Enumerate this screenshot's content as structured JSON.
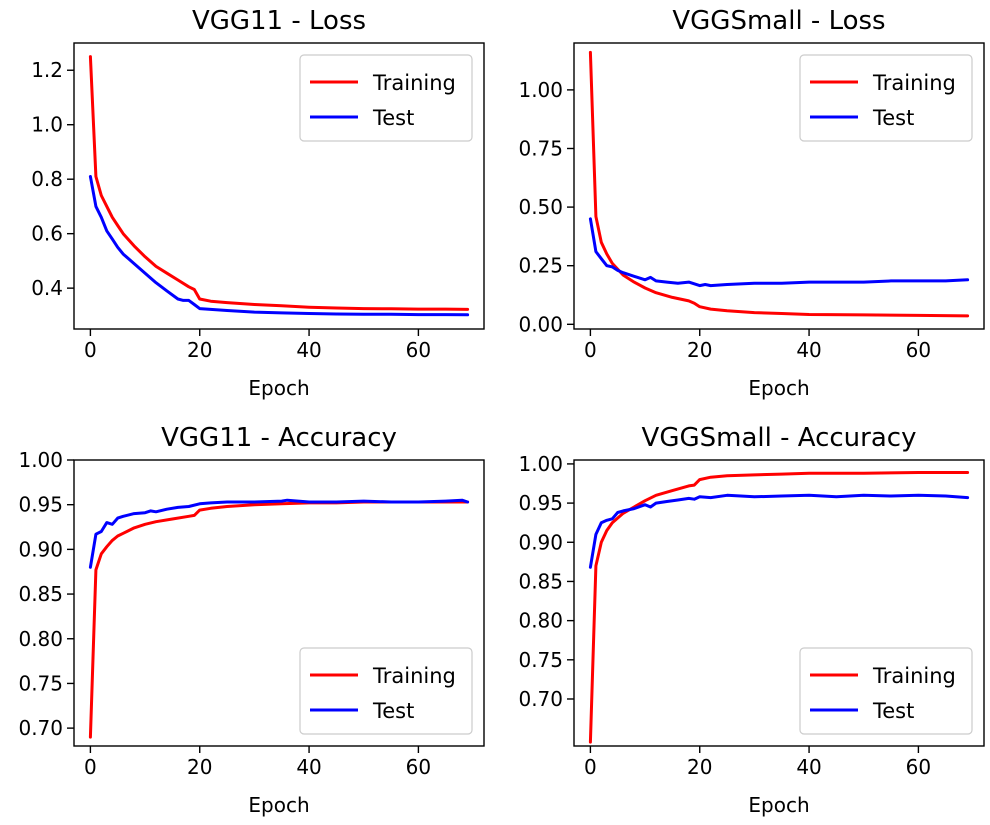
{
  "chart_data": [
    {
      "type": "line",
      "title": "VGG11 - Loss",
      "xlabel": "Epoch",
      "ylabel": "",
      "xlim": [
        -3,
        72
      ],
      "ylim": [
        0.25,
        1.3
      ],
      "xticks": [
        0,
        20,
        40,
        60
      ],
      "xtick_labels": [
        "0",
        "20",
        "40",
        "60"
      ],
      "yticks": [
        0.4,
        0.6,
        0.8,
        1.0,
        1.2
      ],
      "ytick_labels": [
        "0.4",
        "0.6",
        "0.8",
        "1.0",
        "1.2"
      ],
      "grid": false,
      "legend": "upper right",
      "series": [
        {
          "name": "Training",
          "color": "#ff0000",
          "x": [
            0,
            1,
            2,
            3,
            4,
            5,
            6,
            8,
            10,
            12,
            14,
            16,
            18,
            19,
            20,
            22,
            25,
            30,
            35,
            40,
            45,
            50,
            55,
            60,
            65,
            69
          ],
          "y": [
            1.25,
            0.81,
            0.74,
            0.7,
            0.66,
            0.63,
            0.6,
            0.555,
            0.515,
            0.48,
            0.455,
            0.43,
            0.405,
            0.395,
            0.36,
            0.352,
            0.347,
            0.34,
            0.335,
            0.33,
            0.327,
            0.325,
            0.324,
            0.323,
            0.323,
            0.322
          ]
        },
        {
          "name": "Test",
          "color": "#0000ff",
          "x": [
            0,
            1,
            2,
            3,
            4,
            5,
            6,
            8,
            10,
            12,
            14,
            16,
            17,
            18,
            19,
            20,
            22,
            25,
            30,
            35,
            40,
            45,
            50,
            55,
            60,
            65,
            69
          ],
          "y": [
            0.81,
            0.7,
            0.66,
            0.61,
            0.58,
            0.55,
            0.525,
            0.49,
            0.455,
            0.42,
            0.39,
            0.36,
            0.355,
            0.355,
            0.34,
            0.325,
            0.322,
            0.318,
            0.312,
            0.309,
            0.307,
            0.305,
            0.304,
            0.304,
            0.303,
            0.303,
            0.302
          ]
        }
      ]
    },
    {
      "type": "line",
      "title": "VGGSmall - Loss",
      "xlabel": "Epoch",
      "ylabel": "",
      "xlim": [
        -3,
        72
      ],
      "ylim": [
        -0.02,
        1.2
      ],
      "xticks": [
        0,
        20,
        40,
        60
      ],
      "xtick_labels": [
        "0",
        "20",
        "40",
        "60"
      ],
      "yticks": [
        0.0,
        0.25,
        0.5,
        0.75,
        1.0
      ],
      "ytick_labels": [
        "0.00",
        "0.25",
        "0.50",
        "0.75",
        "1.00"
      ],
      "grid": false,
      "legend": "upper right",
      "series": [
        {
          "name": "Training",
          "color": "#ff0000",
          "x": [
            0,
            1,
            2,
            3,
            4,
            6,
            8,
            10,
            12,
            15,
            18,
            19,
            20,
            22,
            25,
            30,
            35,
            40,
            50,
            60,
            69
          ],
          "y": [
            1.16,
            0.46,
            0.35,
            0.3,
            0.26,
            0.21,
            0.18,
            0.155,
            0.135,
            0.115,
            0.1,
            0.09,
            0.075,
            0.065,
            0.058,
            0.05,
            0.046,
            0.042,
            0.04,
            0.038,
            0.036
          ]
        },
        {
          "name": "Test",
          "color": "#0000ff",
          "x": [
            0,
            1,
            2,
            3,
            4,
            5,
            6,
            8,
            10,
            11,
            12,
            14,
            16,
            18,
            20,
            21,
            22,
            25,
            30,
            35,
            40,
            45,
            50,
            55,
            60,
            65,
            69
          ],
          "y": [
            0.45,
            0.31,
            0.28,
            0.25,
            0.245,
            0.23,
            0.22,
            0.205,
            0.19,
            0.2,
            0.185,
            0.18,
            0.175,
            0.18,
            0.165,
            0.17,
            0.165,
            0.17,
            0.175,
            0.175,
            0.18,
            0.18,
            0.18,
            0.185,
            0.185,
            0.185,
            0.19
          ]
        }
      ]
    },
    {
      "type": "line",
      "title": "VGG11 - Accuracy",
      "xlabel": "Epoch",
      "ylabel": "",
      "xlim": [
        -3,
        72
      ],
      "ylim": [
        0.68,
        1.0
      ],
      "xticks": [
        0,
        20,
        40,
        60
      ],
      "xtick_labels": [
        "0",
        "20",
        "40",
        "60"
      ],
      "yticks": [
        0.7,
        0.75,
        0.8,
        0.85,
        0.9,
        0.95,
        1.0
      ],
      "ytick_labels": [
        "0.70",
        "0.75",
        "0.80",
        "0.85",
        "0.90",
        "0.95",
        "1.00"
      ],
      "grid": false,
      "legend": "lower right",
      "series": [
        {
          "name": "Training",
          "color": "#ff0000",
          "x": [
            0,
            1,
            2,
            3,
            4,
            5,
            6,
            8,
            10,
            12,
            15,
            18,
            19,
            20,
            22,
            25,
            30,
            35,
            40,
            45,
            50,
            55,
            60,
            65,
            69
          ],
          "y": [
            0.69,
            0.877,
            0.895,
            0.903,
            0.91,
            0.915,
            0.918,
            0.924,
            0.928,
            0.931,
            0.934,
            0.937,
            0.938,
            0.944,
            0.946,
            0.948,
            0.95,
            0.951,
            0.952,
            0.952,
            0.953,
            0.953,
            0.953,
            0.953,
            0.953
          ]
        },
        {
          "name": "Test",
          "color": "#0000ff",
          "x": [
            0,
            1,
            2,
            3,
            4,
            5,
            6,
            8,
            10,
            11,
            12,
            14,
            16,
            18,
            20,
            22,
            25,
            30,
            35,
            36,
            40,
            45,
            50,
            55,
            60,
            65,
            68,
            69
          ],
          "y": [
            0.88,
            0.917,
            0.92,
            0.93,
            0.928,
            0.935,
            0.937,
            0.94,
            0.941,
            0.943,
            0.942,
            0.945,
            0.947,
            0.948,
            0.951,
            0.952,
            0.953,
            0.953,
            0.954,
            0.955,
            0.953,
            0.953,
            0.954,
            0.953,
            0.953,
            0.954,
            0.955,
            0.953
          ]
        }
      ]
    },
    {
      "type": "line",
      "title": "VGGSmall - Accuracy",
      "xlabel": "Epoch",
      "ylabel": "",
      "xlim": [
        -3,
        72
      ],
      "ylim": [
        0.64,
        1.005
      ],
      "xticks": [
        0,
        20,
        40,
        60
      ],
      "xtick_labels": [
        "0",
        "20",
        "40",
        "60"
      ],
      "yticks": [
        0.7,
        0.75,
        0.8,
        0.85,
        0.9,
        0.95,
        1.0
      ],
      "ytick_labels": [
        "0.70",
        "0.75",
        "0.80",
        "0.85",
        "0.90",
        "0.95",
        "1.00"
      ],
      "grid": false,
      "legend": "lower right",
      "series": [
        {
          "name": "Training",
          "color": "#ff0000",
          "x": [
            0,
            1,
            2,
            3,
            4,
            6,
            8,
            10,
            12,
            15,
            18,
            19,
            20,
            22,
            25,
            30,
            35,
            40,
            50,
            60,
            69
          ],
          "y": [
            0.645,
            0.87,
            0.9,
            0.915,
            0.925,
            0.937,
            0.945,
            0.953,
            0.96,
            0.966,
            0.972,
            0.973,
            0.98,
            0.983,
            0.985,
            0.986,
            0.987,
            0.988,
            0.988,
            0.989,
            0.989
          ]
        },
        {
          "name": "Test",
          "color": "#0000ff",
          "x": [
            0,
            1,
            2,
            3,
            4,
            5,
            6,
            8,
            10,
            11,
            12,
            14,
            16,
            18,
            19,
            20,
            22,
            25,
            30,
            35,
            40,
            45,
            50,
            55,
            60,
            65,
            69
          ],
          "y": [
            0.868,
            0.91,
            0.925,
            0.928,
            0.93,
            0.938,
            0.94,
            0.943,
            0.948,
            0.945,
            0.95,
            0.952,
            0.954,
            0.956,
            0.955,
            0.958,
            0.957,
            0.96,
            0.958,
            0.959,
            0.96,
            0.958,
            0.96,
            0.959,
            0.96,
            0.959,
            0.957
          ]
        }
      ]
    }
  ]
}
